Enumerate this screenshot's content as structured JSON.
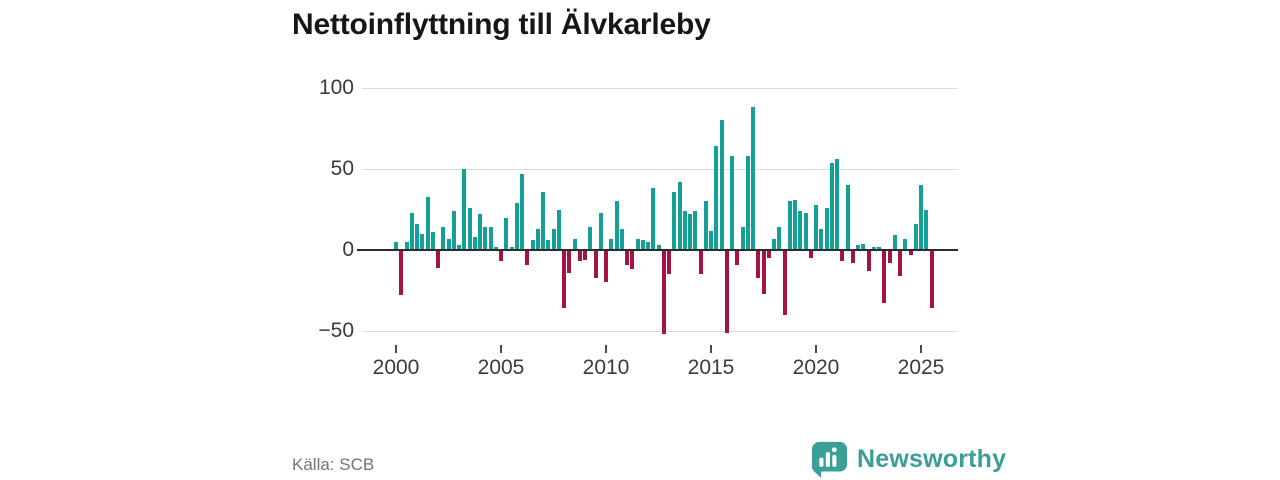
{
  "header": {
    "title": "Nettoinflyttning till Älvkarleby"
  },
  "footer": {
    "source": "Källa: SCB",
    "brand": "Newsworthy",
    "logo_icon": "newsworthy-speech-bubble-with-bar-chart-icon"
  },
  "chart_data": {
    "type": "bar",
    "title": "Nettoinflyttning till Älvkarleby",
    "frequency": "quarterly",
    "start_year": 2000,
    "start_quarter": 1,
    "end_year": 2025,
    "end_quarter": 3,
    "values": [
      5,
      -28,
      5,
      23,
      16,
      10,
      33,
      11,
      -11,
      14,
      7,
      24,
      3,
      50,
      26,
      8,
      22,
      14,
      14,
      2,
      -7,
      20,
      2,
      29,
      47,
      -9,
      6,
      13,
      36,
      6,
      13,
      25,
      -36,
      -14,
      7,
      -7,
      -6,
      14,
      -17,
      23,
      -20,
      7,
      30,
      13,
      -9,
      -12,
      7,
      6,
      5,
      38,
      3,
      -52,
      -15,
      36,
      42,
      24,
      22,
      24,
      -15,
      30,
      12,
      64,
      80,
      -51,
      58,
      -9,
      14,
      58,
      88,
      -17,
      -27,
      -5,
      7,
      14,
      -40,
      30,
      31,
      24,
      23,
      -5,
      28,
      13,
      26,
      54,
      56,
      -7,
      40,
      -8,
      3,
      4,
      -13,
      2,
      2,
      -33,
      -8,
      9,
      -16,
      7,
      -3,
      16,
      40,
      25,
      -36
    ],
    "yticks": [
      {
        "value": 100,
        "label": "100"
      },
      {
        "value": 50,
        "label": "50"
      },
      {
        "value": 0,
        "label": "0"
      },
      {
        "value": -50,
        "label": "−50"
      }
    ],
    "xticks": [
      {
        "year": 2000,
        "label": "2000"
      },
      {
        "year": 2005,
        "label": "2005"
      },
      {
        "year": 2010,
        "label": "2010"
      },
      {
        "year": 2015,
        "label": "2015"
      },
      {
        "year": 2020,
        "label": "2020"
      },
      {
        "year": 2025,
        "label": "2025"
      }
    ],
    "ylim": [
      -58,
      102
    ],
    "grid": "horizontal",
    "legend": "none",
    "colors": {
      "positive": "#14a096",
      "negative": "#a51342",
      "brand": "#3b9e97",
      "gridline": "#dcdcdc",
      "zero_line": "#2c2c2c",
      "axis_text": "#3b3b3b"
    }
  }
}
